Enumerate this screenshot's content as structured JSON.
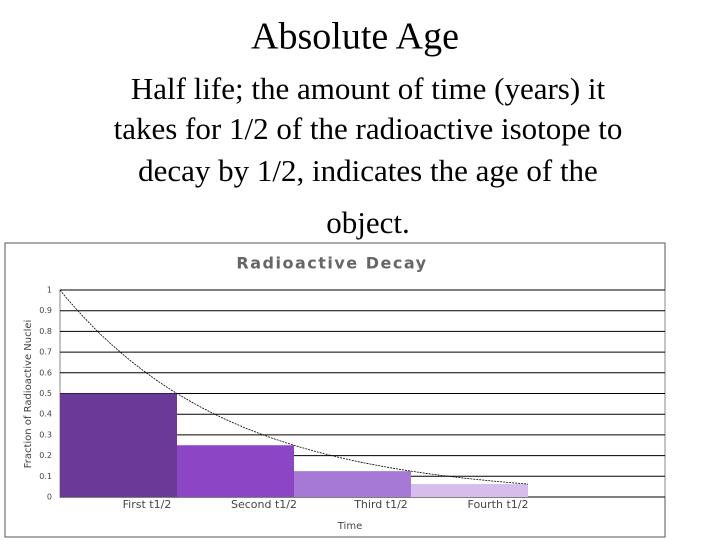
{
  "header": {
    "title": "Absolute Age",
    "lines": [
      "Half life; the amount of time (years) it",
      "takes for 1/2 of the radioactive isotope to",
      "decay by 1/2, indicates the age of the",
      "object."
    ]
  },
  "chart_data": {
    "type": "bar",
    "title": "Radioactive Decay",
    "categories": [
      "First t1/2",
      "Second t1/2",
      "Third t1/2",
      "Fourth t1/2"
    ],
    "values": [
      0.5,
      0.25,
      0.125,
      0.0625
    ],
    "colors": [
      "#6b3a98",
      "#8c45c4",
      "#a679d6",
      "#d7bdec"
    ],
    "x_label": "Time",
    "y_label": "Fraction of Radioactive Nuclei",
    "ylim": [
      0,
      1
    ],
    "yticks": [
      0,
      0.1,
      0.2,
      0.3,
      0.4,
      0.5,
      0.6,
      0.7,
      0.8,
      0.9,
      1
    ],
    "grid": true
  }
}
